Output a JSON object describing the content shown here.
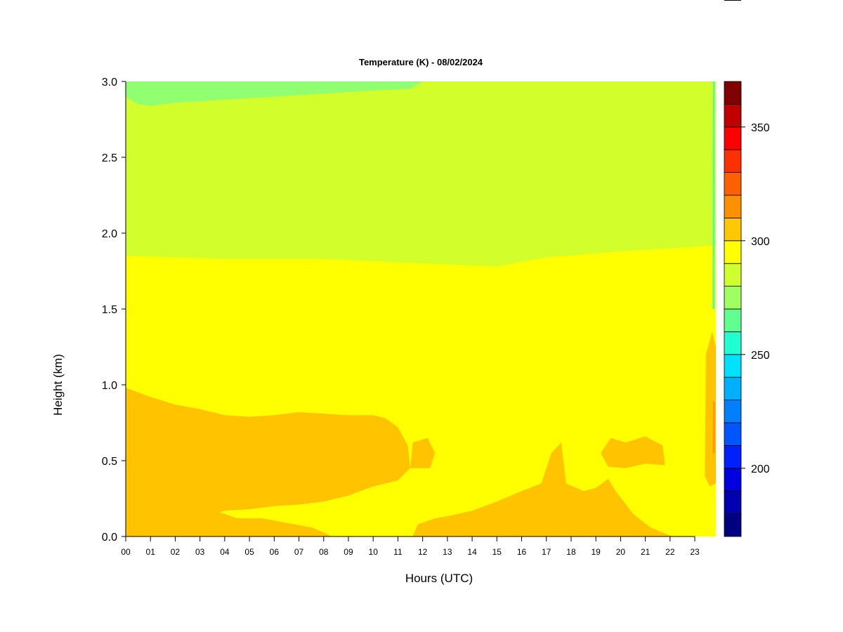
{
  "chart_data": {
    "type": "heatmap",
    "title": "Temperature (K) - 08/02/2024",
    "xlabel": "Hours (UTC)",
    "ylabel": "Height (km)",
    "xlim": [
      0,
      24
    ],
    "ylim": [
      0,
      3.0
    ],
    "x_ticks": [
      0,
      1,
      2,
      3,
      4,
      5,
      6,
      7,
      8,
      9,
      10,
      11,
      12,
      13,
      14,
      15,
      16,
      17,
      18,
      19,
      20,
      21,
      22,
      23
    ],
    "x_tick_labels": [
      "00",
      "01",
      "02",
      "03",
      "04",
      "05",
      "06",
      "07",
      "08",
      "09",
      "10",
      "11",
      "12",
      "13",
      "14",
      "15",
      "16",
      "17",
      "18",
      "19",
      "20",
      "21",
      "22",
      "23"
    ],
    "y_ticks": [
      0.0,
      0.5,
      1.0,
      1.5,
      2.0,
      2.5,
      3.0
    ],
    "y_tick_labels": [
      "0.0",
      "0.5",
      "1.0",
      "1.5",
      "2.0",
      "2.5",
      "3.0"
    ],
    "colorbar": {
      "range": [
        170,
        370
      ],
      "step": 10,
      "tick_values": [
        200,
        250,
        300,
        350
      ],
      "tick_labels": [
        "200",
        "250",
        "300",
        "350"
      ],
      "colors": [
        "#000080",
        "#0000B0",
        "#0000E0",
        "#0020FF",
        "#0055FF",
        "#0080FF",
        "#00B0FF",
        "#00E0FF",
        "#20FFD0",
        "#60FF90",
        "#A0FF60",
        "#D0FF30",
        "#FFFF00",
        "#FFC800",
        "#FF9000",
        "#FF6000",
        "#FF3000",
        "#FF0000",
        "#C00000",
        "#800000"
      ]
    },
    "regions": [
      {
        "name": "upper-layer",
        "value_K": 285,
        "color": "#D2FF2C",
        "x_start": 0,
        "x_end": 23.85,
        "boundary": [
          [
            0,
            1.85
          ],
          [
            4,
            1.83
          ],
          [
            8,
            1.83
          ],
          [
            12,
            1.8
          ],
          [
            15,
            1.78
          ],
          [
            17,
            1.84
          ],
          [
            20,
            1.88
          ],
          [
            22,
            1.9
          ],
          [
            23.85,
            1.92
          ]
        ]
      },
      {
        "name": "middle-layer",
        "value_K": 295,
        "color": "#FFFF00",
        "x_start": 0,
        "x_end": 23.85
      }
    ],
    "warm_patches": [
      {
        "name": "morning-warm-layer",
        "value_K": 305,
        "color": "#FFC300",
        "polygon": [
          [
            0,
            0
          ],
          [
            0,
            0.98
          ],
          [
            1,
            0.92
          ],
          [
            2,
            0.87
          ],
          [
            3,
            0.84
          ],
          [
            4,
            0.8
          ],
          [
            5,
            0.79
          ],
          [
            6,
            0.8
          ],
          [
            7,
            0.82
          ],
          [
            8,
            0.81
          ],
          [
            9,
            0.8
          ],
          [
            10,
            0.8
          ],
          [
            10.5,
            0.78
          ],
          [
            11,
            0.72
          ],
          [
            11.4,
            0.6
          ],
          [
            11.5,
            0.45
          ],
          [
            11,
            0.37
          ],
          [
            10,
            0.33
          ],
          [
            9,
            0.27
          ],
          [
            8,
            0.23
          ],
          [
            7,
            0.21
          ],
          [
            6,
            0.2
          ],
          [
            5,
            0.18
          ],
          [
            4,
            0.17
          ],
          [
            3.8,
            0.16
          ],
          [
            4.5,
            0.12
          ],
          [
            5.5,
            0.12
          ],
          [
            6.5,
            0.09
          ],
          [
            7.5,
            0.06
          ],
          [
            8.1,
            0.02
          ],
          [
            8.3,
            0
          ]
        ]
      },
      {
        "name": "afternoon-warm-layer",
        "value_K": 305,
        "color": "#FFC300",
        "polygon": [
          [
            11.6,
            0
          ],
          [
            11.8,
            0.08
          ],
          [
            12.5,
            0.12
          ],
          [
            13.2,
            0.14
          ],
          [
            14,
            0.17
          ],
          [
            15,
            0.23
          ],
          [
            16,
            0.3
          ],
          [
            16.8,
            0.35
          ],
          [
            17.2,
            0.55
          ],
          [
            17.6,
            0.62
          ],
          [
            17.8,
            0.35
          ],
          [
            18.5,
            0.3
          ],
          [
            19,
            0.32
          ],
          [
            19.5,
            0.38
          ],
          [
            19.8,
            0.3
          ],
          [
            20.5,
            0.15
          ],
          [
            21.2,
            0.06
          ],
          [
            21.8,
            0.02
          ],
          [
            22.1,
            0
          ]
        ]
      },
      {
        "name": "afternoon-warm-patch",
        "value_K": 305,
        "color": "#FFC300",
        "polygon": [
          [
            19.2,
            0.55
          ],
          [
            19.6,
            0.65
          ],
          [
            20.2,
            0.62
          ],
          [
            21.0,
            0.66
          ],
          [
            21.7,
            0.6
          ],
          [
            21.8,
            0.47
          ],
          [
            21.0,
            0.48
          ],
          [
            20.2,
            0.45
          ],
          [
            19.5,
            0.46
          ]
        ]
      },
      {
        "name": "noon-warm-patch",
        "value_K": 305,
        "color": "#FFC300",
        "polygon": [
          [
            11.5,
            0.45
          ],
          [
            11.6,
            0.62
          ],
          [
            12.2,
            0.65
          ],
          [
            12.5,
            0.55
          ],
          [
            12.3,
            0.45
          ],
          [
            11.9,
            0.45
          ]
        ]
      },
      {
        "name": "late-evening-warm-strip",
        "value_K": 305,
        "color": "#FFC300",
        "polygon": [
          [
            23.4,
            0.4
          ],
          [
            23.45,
            1.2
          ],
          [
            23.7,
            1.35
          ],
          [
            23.85,
            1.25
          ],
          [
            23.85,
            0.35
          ],
          [
            23.6,
            0.33
          ]
        ]
      },
      {
        "name": "late-evening-hot-strip",
        "value_K": 315,
        "color": "#FF9C00",
        "polygon": [
          [
            23.72,
            0.55
          ],
          [
            23.74,
            0.9
          ],
          [
            23.82,
            0.88
          ],
          [
            23.82,
            0.55
          ]
        ]
      }
    ],
    "cool_patches": [
      {
        "name": "top-cool-fringe",
        "value_K": 275,
        "color": "#90FF70",
        "polygon": [
          [
            0,
            2.9
          ],
          [
            0,
            3.0
          ],
          [
            12,
            3.0
          ],
          [
            11.5,
            2.95
          ],
          [
            10,
            2.94
          ],
          [
            8,
            2.92
          ],
          [
            6,
            2.9
          ],
          [
            4,
            2.88
          ],
          [
            2,
            2.86
          ],
          [
            1,
            2.84
          ],
          [
            0.5,
            2.85
          ]
        ]
      },
      {
        "name": "late-evening-cool-strip",
        "value_K": 265,
        "color": "#40FFB0",
        "polygon": [
          [
            23.72,
            1.5
          ],
          [
            23.74,
            3.0
          ],
          [
            23.8,
            3.0
          ],
          [
            23.8,
            1.5
          ]
        ]
      }
    ]
  }
}
